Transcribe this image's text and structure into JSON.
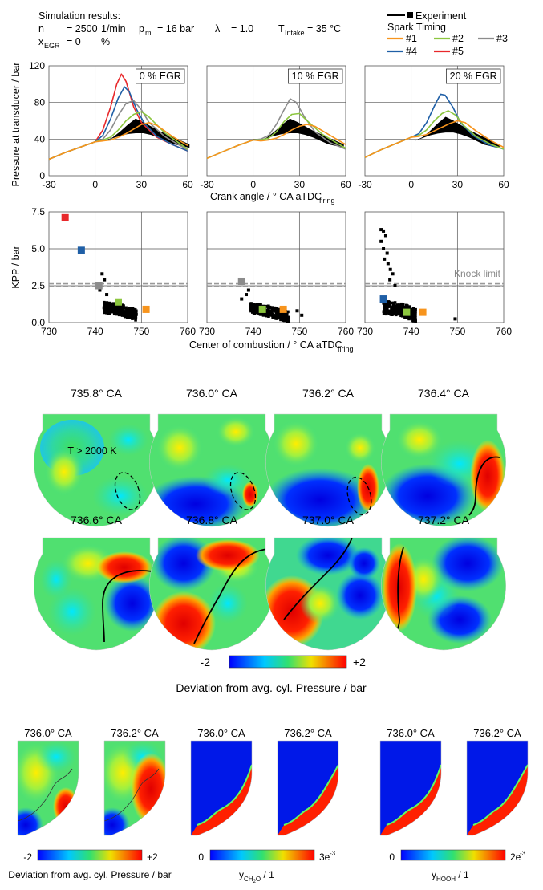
{
  "header": {
    "title": "Simulation results:",
    "n_label": "n",
    "n_value": "= 2500",
    "n_unit": "1/min",
    "pmi_label": "p",
    "pmi_sub": "mi",
    "pmi_value": "= 16 bar",
    "lambda_label": "λ",
    "lambda_value": "= 1.0",
    "t_label": "T",
    "t_sub": "Intake",
    "t_value": "= 35 °C",
    "xegr_label": "x",
    "xegr_sub": "EGR",
    "xegr_value": "= 0",
    "xegr_unit": "%"
  },
  "legend": {
    "experiment": "Experiment",
    "spark_title": "Spark Timing",
    "items": [
      {
        "label": "#1",
        "color": "#f7941d"
      },
      {
        "label": "#2",
        "color": "#8cc63f"
      },
      {
        "label": "#3",
        "color": "#8c8c8c"
      },
      {
        "label": "#4",
        "color": "#1f5fa6"
      },
      {
        "label": "#5",
        "color": "#e8282b"
      }
    ]
  },
  "pressure_axes": {
    "ylabel": "Pressure at transducer / bar",
    "xlabel_main": "Crank angle / ° CA aTDC",
    "xlabel_sub": "firing",
    "yticks": [
      "0",
      "40",
      "80",
      "120"
    ],
    "xticks": [
      "-30",
      "0",
      "30",
      "60"
    ]
  },
  "kpp_axes": {
    "ylabel": "KPP / bar",
    "xlabel_main": "Center of combustion / ° CA aTDC",
    "xlabel_sub": "firing",
    "yticks": [
      "0.0",
      "2.5",
      "5.0",
      "7.5"
    ],
    "xticks": [
      "730",
      "740",
      "750",
      "760"
    ],
    "knock_limit": "Knock limit"
  },
  "chart_data": [
    {
      "type": "line",
      "title": "0 % EGR",
      "xlim": [
        -30,
        60
      ],
      "ylim": [
        0,
        120
      ],
      "series": [
        {
          "name": "#5",
          "x": [
            -30,
            -20,
            -10,
            0,
            5,
            10,
            14,
            17,
            20,
            25,
            30,
            40,
            50,
            60
          ],
          "values": [
            18,
            25,
            31,
            37,
            50,
            75,
            100,
            111,
            103,
            75,
            58,
            42,
            34,
            27
          ]
        },
        {
          "name": "#4",
          "x": [
            -30,
            -20,
            -10,
            0,
            5,
            10,
            15,
            19,
            22,
            27,
            32,
            40,
            50,
            60
          ],
          "values": [
            18,
            25,
            31,
            37,
            44,
            62,
            85,
            97,
            92,
            72,
            57,
            43,
            34,
            27
          ]
        },
        {
          "name": "#3",
          "x": [
            -30,
            -20,
            -10,
            0,
            5,
            10,
            15,
            20,
            25,
            30,
            35,
            45,
            55,
            60
          ],
          "values": [
            18,
            25,
            31,
            37,
            40,
            50,
            66,
            79,
            82,
            72,
            58,
            43,
            33,
            28
          ]
        },
        {
          "name": "#2",
          "x": [
            -30,
            -20,
            -10,
            0,
            5,
            10,
            15,
            20,
            25,
            30,
            35,
            45,
            55,
            60
          ],
          "values": [
            18,
            25,
            31,
            37,
            39,
            42,
            50,
            60,
            67,
            70,
            64,
            47,
            35,
            29
          ]
        },
        {
          "name": "#1",
          "x": [
            -30,
            -20,
            -10,
            0,
            5,
            10,
            15,
            20,
            25,
            30,
            35,
            40,
            50,
            60
          ],
          "values": [
            18,
            25,
            31,
            37,
            38,
            39,
            42,
            46,
            51,
            56,
            58,
            55,
            43,
            33
          ]
        }
      ]
    },
    {
      "type": "line",
      "title": "10 % EGR",
      "xlim": [
        -30,
        60
      ],
      "ylim": [
        0,
        120
      ],
      "series": [
        {
          "name": "#3",
          "x": [
            -30,
            -20,
            -10,
            0,
            5,
            10,
            15,
            20,
            24,
            28,
            33,
            40,
            50,
            60
          ],
          "values": [
            19,
            26,
            33,
            39,
            40,
            44,
            56,
            72,
            84,
            80,
            65,
            48,
            36,
            29
          ]
        },
        {
          "name": "#2",
          "x": [
            -30,
            -20,
            -10,
            0,
            5,
            10,
            15,
            20,
            25,
            30,
            35,
            45,
            55,
            60
          ],
          "values": [
            19,
            26,
            33,
            39,
            39,
            41,
            48,
            59,
            67,
            68,
            60,
            45,
            35,
            30
          ]
        },
        {
          "name": "#1",
          "x": [
            -30,
            -20,
            -10,
            0,
            5,
            10,
            15,
            20,
            25,
            30,
            35,
            40,
            50,
            60
          ],
          "values": [
            19,
            26,
            33,
            39,
            38,
            39,
            41,
            45,
            50,
            54,
            56,
            54,
            44,
            34
          ]
        }
      ]
    },
    {
      "type": "line",
      "title": "20 % EGR",
      "xlim": [
        -30,
        60
      ],
      "ylim": [
        0,
        120
      ],
      "series": [
        {
          "name": "#4",
          "x": [
            -30,
            -20,
            -10,
            0,
            5,
            10,
            15,
            19,
            22,
            27,
            32,
            40,
            50,
            60
          ],
          "values": [
            20,
            28,
            35,
            42,
            46,
            58,
            76,
            89,
            88,
            75,
            58,
            44,
            34,
            29
          ]
        },
        {
          "name": "#2",
          "x": [
            -30,
            -20,
            -10,
            0,
            5,
            10,
            15,
            20,
            24,
            29,
            34,
            42,
            52,
            60
          ],
          "values": [
            20,
            28,
            35,
            42,
            44,
            50,
            60,
            68,
            71,
            66,
            55,
            43,
            34,
            29
          ]
        },
        {
          "name": "#1",
          "x": [
            -30,
            -20,
            -10,
            0,
            5,
            10,
            15,
            20,
            25,
            30,
            35,
            42,
            52,
            60
          ],
          "values": [
            20,
            28,
            35,
            42,
            43,
            45,
            49,
            53,
            57,
            60,
            58,
            49,
            38,
            31
          ]
        }
      ]
    },
    {
      "type": "scatter",
      "xlim": [
        730,
        760
      ],
      "ylim": [
        0,
        7.5
      ],
      "knock_limit": 2.55,
      "series": [
        {
          "name": "#5",
          "x": [
            733.5
          ],
          "values": [
            7.1
          ]
        },
        {
          "name": "#4",
          "x": [
            737
          ],
          "values": [
            4.9
          ]
        },
        {
          "name": "#3",
          "x": [
            740.8
          ],
          "values": [
            2.5
          ]
        },
        {
          "name": "#2",
          "x": [
            745
          ],
          "values": [
            1.4
          ]
        },
        {
          "name": "#1",
          "x": [
            751
          ],
          "values": [
            0.9
          ]
        }
      ]
    },
    {
      "type": "scatter",
      "xlim": [
        730,
        760
      ],
      "ylim": [
        0,
        7.5
      ],
      "knock_limit": 2.55,
      "series": [
        {
          "name": "#3",
          "x": [
            737.5
          ],
          "values": [
            2.8
          ]
        },
        {
          "name": "#2",
          "x": [
            742
          ],
          "values": [
            0.9
          ]
        },
        {
          "name": "#1",
          "x": [
            746.5
          ],
          "values": [
            0.9
          ]
        }
      ]
    },
    {
      "type": "scatter",
      "xlim": [
        730,
        760
      ],
      "ylim": [
        0,
        7.5
      ],
      "knock_limit": 2.55,
      "series": [
        {
          "name": "#4",
          "x": [
            734
          ],
          "values": [
            1.6
          ]
        },
        {
          "name": "#2",
          "x": [
            739
          ],
          "values": [
            0.7
          ]
        },
        {
          "name": "#1",
          "x": [
            742.5
          ],
          "values": [
            0.7
          ]
        }
      ]
    }
  ],
  "snapshots": {
    "row1": [
      "735.8° CA",
      "736.0° CA",
      "736.2° CA",
      "736.4° CA"
    ],
    "row2": [
      "736.6° CA",
      "736.8° CA",
      "737.0° CA",
      "737.2° CA"
    ],
    "temp_label": "T > 2000 K",
    "colorbar_min": "-2",
    "colorbar_max": "+2",
    "colorbar_label": "Deviation from avg. cyl. Pressure / bar"
  },
  "bottom": {
    "labels": [
      "736.0° CA",
      "736.2° CA",
      "736.0° CA",
      "736.2° CA",
      "736.0° CA",
      "736.2° CA"
    ],
    "cb1_min": "-2",
    "cb1_max": "+2",
    "cb1_label": "Deviation from avg. cyl. Pressure / bar",
    "cb2_min": "0",
    "cb2_max": "3e",
    "cb2_max_sup": "-3",
    "cb2_label_main": "y",
    "cb2_label_sub": "CH",
    "cb2_label_sub2": "2",
    "cb2_label_sub3": "O",
    "cb2_label_unit": " / 1",
    "cb3_min": "0",
    "cb3_max": "2e",
    "cb3_max_sup": "-3",
    "cb3_label_main": "y",
    "cb3_label_sub": "HOOH",
    "cb3_label_unit": " / 1"
  }
}
